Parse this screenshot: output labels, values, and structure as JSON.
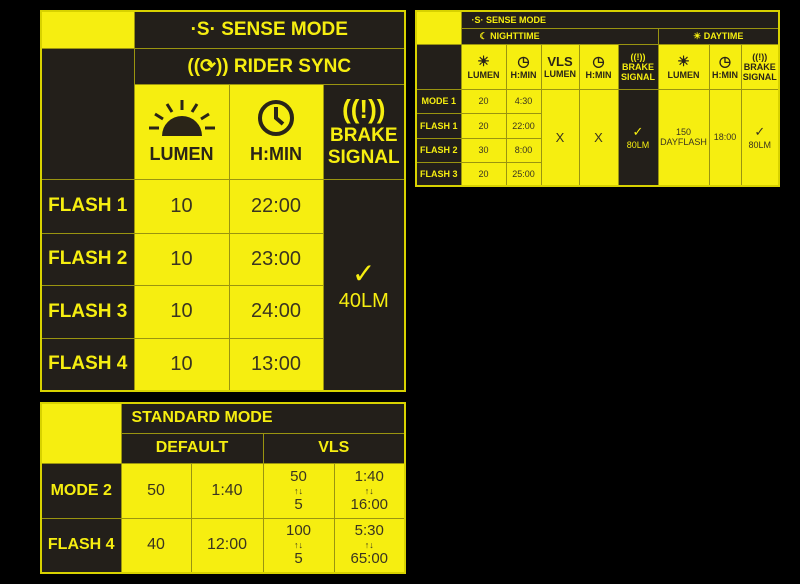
{
  "sense_table": {
    "title": "SENSE MODE",
    "subtitle": "RIDER SYNC",
    "headers": {
      "lumen": "LUMEN",
      "hmin": "H:MIN",
      "brake": "BRAKE SIGNAL"
    },
    "rows": [
      {
        "label": "FLASH 1",
        "lumen": "10",
        "hmin": "22:00"
      },
      {
        "label": "FLASH 2",
        "lumen": "10",
        "hmin": "23:00"
      },
      {
        "label": "FLASH 3",
        "lumen": "10",
        "hmin": "24:00"
      },
      {
        "label": "FLASH 4",
        "lumen": "10",
        "hmin": "13:00"
      }
    ],
    "brake_value": "40LM"
  },
  "sense_small": {
    "title": "SENSE MODE",
    "night": "NIGHTTIME",
    "day": "DAYTIME",
    "headers": {
      "lumen": "LUMEN",
      "hmin": "H:MIN",
      "vls": "VLS",
      "vls_lumen": "LUMEN",
      "brake1": "BRAKE",
      "brake2": "SIGNAL"
    },
    "rows": [
      {
        "label": "MODE 1",
        "lumen": "20",
        "hmin": "4:30"
      },
      {
        "label": "FLASH 1",
        "lumen": "20",
        "hmin": "22:00"
      },
      {
        "label": "FLASH 2",
        "lumen": "30",
        "hmin": "8:00"
      },
      {
        "label": "FLASH 3",
        "lumen": "20",
        "hmin": "25:00"
      }
    ],
    "vls_lumen": "X",
    "vls_hmin": "X",
    "night_brake": "80LM",
    "day_lumen": "150",
    "day_lumen_sub": "DAYFLASH",
    "day_hmin": "18:00",
    "day_brake": "80LM"
  },
  "standard_table": {
    "title": "STANDARD MODE",
    "default": "DEFAULT",
    "vls": "VLS",
    "arrows": "↑↓",
    "rows": [
      {
        "label": "MODE 2",
        "lumen": "50",
        "hmin": "1:40",
        "vls_lumen_hi": "50",
        "vls_lumen_lo": "5",
        "vls_hmin_hi": "1:40",
        "vls_hmin_lo": "16:00"
      },
      {
        "label": "FLASH 4",
        "lumen": "40",
        "hmin": "12:00",
        "vls_lumen_hi": "100",
        "vls_lumen_lo": "5",
        "vls_hmin_hi": "5:30",
        "vls_hmin_lo": "65:00"
      }
    ]
  },
  "colors": {
    "yellow": "#f6ee10",
    "dark": "#231f1a"
  }
}
